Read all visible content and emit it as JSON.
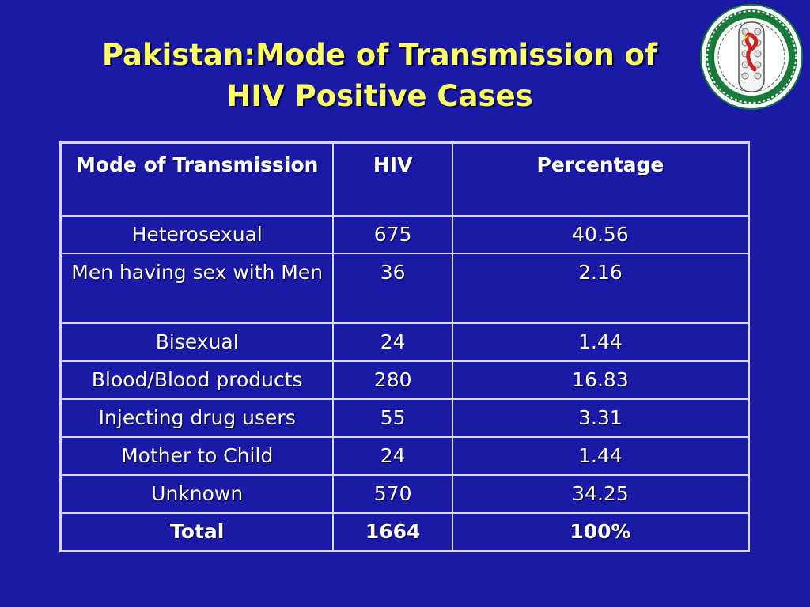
{
  "slide": {
    "title_line1": "Pakistan:Mode of Transmission of",
    "title_line2": "HIV Positive Cases"
  },
  "logo": {
    "icon": "emblem-seal-icon",
    "colors": [
      "#ffffff",
      "#1a7a3a",
      "#cc2222",
      "#ffdd00"
    ]
  },
  "table": {
    "headers": [
      "Mode of Transmission",
      "HIV",
      "Percentage"
    ],
    "rows": [
      {
        "mode": "Heterosexual",
        "hiv": "675",
        "pct": "40.56"
      },
      {
        "mode": "Men having sex with Men",
        "hiv": "36",
        "pct": "2.16"
      },
      {
        "mode": "Bisexual",
        "hiv": "24",
        "pct": "1.44"
      },
      {
        "mode": "Blood/Blood products",
        "hiv": "280",
        "pct": "16.83"
      },
      {
        "mode": "Injecting drug users",
        "hiv": "55",
        "pct": "3.31"
      },
      {
        "mode": "Mother to Child",
        "hiv": "24",
        "pct": "1.44"
      },
      {
        "mode": "Unknown",
        "hiv": "570",
        "pct": "34.25"
      }
    ],
    "total": {
      "mode": "Total",
      "hiv": "1664",
      "pct": "100%"
    }
  },
  "theme": {
    "background": "#1a1aa6",
    "title_color": "#ffff66",
    "text_color": "#ffffff",
    "border_color": "#d8d8f0"
  }
}
